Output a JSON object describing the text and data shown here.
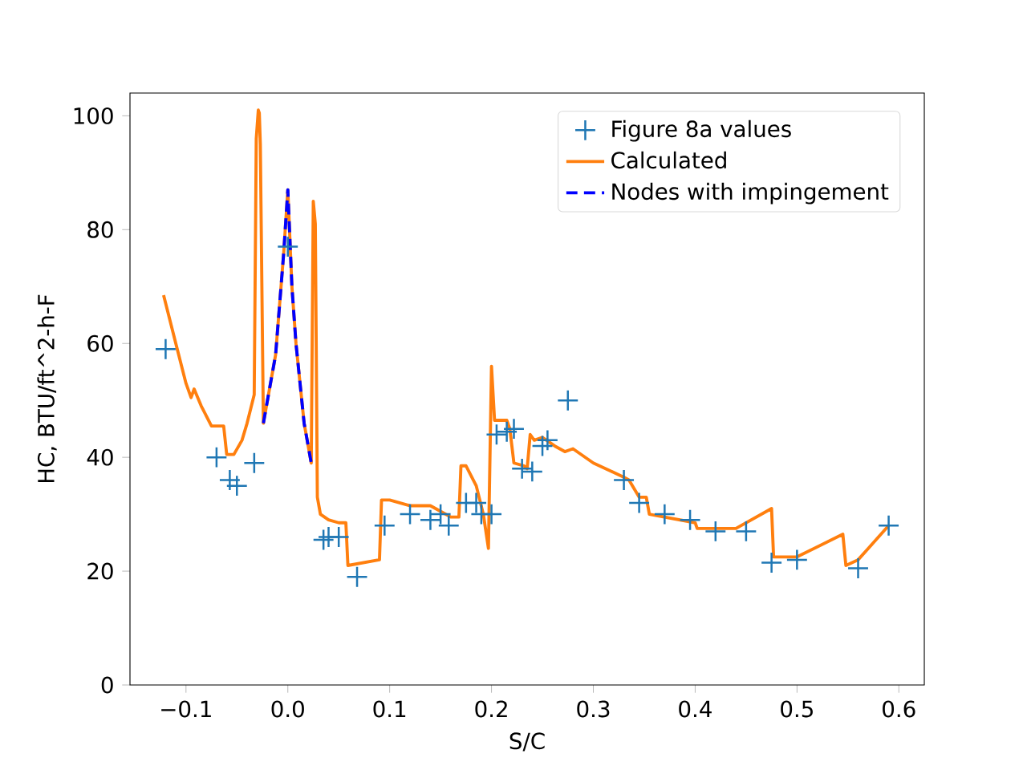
{
  "chart_data": {
    "type": "line",
    "xlabel": "S/C",
    "ylabel": "HC, BTU/ft^2-h-F",
    "xlim": [
      -0.155,
      0.625
    ],
    "ylim": [
      0,
      104
    ],
    "xticks": [
      {
        "value": -0.1,
        "label": "−0.1"
      },
      {
        "value": 0,
        "label": "0.0"
      },
      0.1,
      0.2,
      0.3,
      0.4,
      0.5,
      0.6
    ],
    "yticks": [
      0,
      20,
      40,
      60,
      80,
      100
    ],
    "legend": "top right",
    "series": [
      {
        "name": "Figure 8a values",
        "type": "scatter",
        "marker": "cross",
        "color": "#1f77b4",
        "x": [
          -0.12,
          -0.07,
          -0.057,
          -0.05,
          -0.033,
          0.0,
          0.035,
          0.04,
          0.05,
          0.068,
          0.095,
          0.12,
          0.14,
          0.15,
          0.158,
          0.175,
          0.185,
          0.19,
          0.2,
          0.205,
          0.215,
          0.222,
          0.23,
          0.24,
          0.25,
          0.255,
          0.275,
          0.33,
          0.345,
          0.37,
          0.395,
          0.42,
          0.45,
          0.475,
          0.5,
          0.56,
          0.59
        ],
        "values": [
          59,
          40,
          36,
          35,
          39,
          77,
          25.5,
          26,
          26,
          19,
          28,
          30,
          29,
          30,
          28,
          32,
          32,
          30,
          30,
          44,
          44.5,
          45,
          38,
          37.5,
          42,
          43,
          50,
          36,
          32,
          30,
          29,
          27,
          27,
          21.5,
          22,
          20.5,
          28
        ]
      },
      {
        "name": "Calculated",
        "type": "line",
        "line_style": "solid",
        "color": "#ff7f0e",
        "x": [
          -0.122,
          -0.11,
          -0.1,
          -0.095,
          -0.092,
          -0.085,
          -0.075,
          -0.063,
          -0.06,
          -0.053,
          -0.045,
          -0.04,
          -0.033,
          -0.031,
          -0.029,
          -0.028,
          -0.027,
          -0.024,
          -0.02,
          -0.016,
          -0.012,
          -0.008,
          -0.004,
          0.0,
          0.004,
          0.008,
          0.012,
          0.016,
          0.02,
          0.023,
          0.025,
          0.027,
          0.029,
          0.032,
          0.04,
          0.05,
          0.057,
          0.059,
          0.09,
          0.092,
          0.1,
          0.12,
          0.14,
          0.15,
          0.16,
          0.168,
          0.17,
          0.175,
          0.185,
          0.192,
          0.197,
          0.2,
          0.203,
          0.215,
          0.218,
          0.222,
          0.232,
          0.235,
          0.238,
          0.242,
          0.25,
          0.262,
          0.272,
          0.28,
          0.3,
          0.33,
          0.335,
          0.345,
          0.352,
          0.355,
          0.4,
          0.402,
          0.44,
          0.475,
          0.477,
          0.5,
          0.545,
          0.548,
          0.56,
          0.57,
          0.59
        ],
        "values": [
          68.5,
          60,
          53,
          50.5,
          52,
          49,
          45.5,
          45.5,
          40.5,
          40.5,
          43,
          46,
          51,
          96,
          101,
          100.5,
          95,
          46,
          50,
          54,
          58,
          67,
          76,
          87,
          70,
          60,
          53,
          46,
          42,
          39,
          85,
          81,
          33,
          30,
          29,
          28.5,
          28.5,
          21,
          22,
          32.5,
          32.5,
          31.5,
          31.5,
          30.5,
          29.5,
          29.5,
          38.5,
          38.5,
          35,
          30,
          24,
          56,
          46.5,
          46.5,
          45,
          39,
          38.5,
          38,
          44,
          43,
          43.5,
          42,
          41,
          41.5,
          39,
          36.5,
          36,
          33,
          33,
          30,
          28.5,
          27.5,
          27.5,
          31,
          22.5,
          22.5,
          26.5,
          21,
          22,
          24,
          28
        ]
      },
      {
        "name": "Nodes with impingement",
        "type": "line",
        "line_style": "dashed",
        "color": "#0000ff",
        "x": [
          -0.024,
          -0.02,
          -0.016,
          -0.012,
          -0.008,
          -0.004,
          0.0,
          0.004,
          0.008,
          0.012,
          0.016,
          0.02,
          0.023
        ],
        "values": [
          46,
          50,
          54,
          58,
          67,
          76,
          87,
          70,
          60,
          53,
          46,
          42,
          39
        ]
      }
    ]
  }
}
